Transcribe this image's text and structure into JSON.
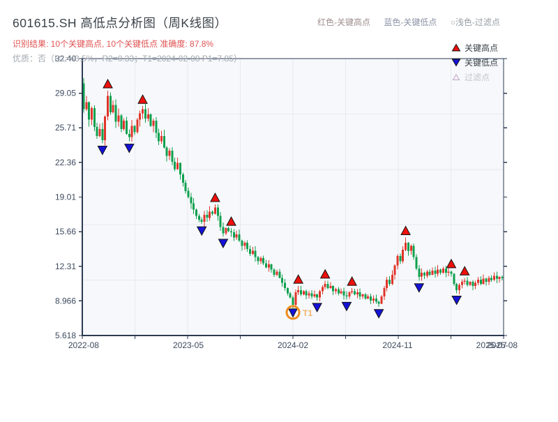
{
  "header": {
    "title": "601615.SH 高低点分析图（周K线图）",
    "result_line": "识别结果: 10个关键高点, 10个关键低点  准确度: 87.8%",
    "quality_line": "优质：否（R1=43.5%，R2=0.33；T1=2024-02-08 P1=7.85）"
  },
  "top_legend": {
    "high_note": "红色-关键高点",
    "low_note": "蓝色-关键低点",
    "filtered_note": "○浅色-过滤点"
  },
  "chart_legend": [
    {
      "id": "key-high",
      "label": "关键高点",
      "icon": "red-up-triangle",
      "disabled": false
    },
    {
      "id": "key-low",
      "label": "关键低点",
      "icon": "blue-down-triangle",
      "disabled": false
    },
    {
      "id": "filtered",
      "label": "过滤点",
      "icon": "light-hollow-triangle",
      "disabled": true
    }
  ],
  "chart_data": {
    "type": "candlestick",
    "period": "weekly",
    "symbol": "601615.SH",
    "title": "601615.SH 高低点分析图（周K线图）",
    "ylim": [
      5.618,
      32.4
    ],
    "y_ticks": [
      "5.618",
      "8.966",
      "12.31",
      "15.66",
      "19.01",
      "22.36",
      "25.71",
      "29.05",
      "32.40"
    ],
    "x_ticks": [
      {
        "label": "2022-08",
        "week": 0
      },
      {
        "label": "2023-05",
        "week": 39
      },
      {
        "label": "2024-02",
        "week": 78
      },
      {
        "label": "2024-11",
        "week": 117
      },
      {
        "label": "2025-07",
        "week": 152
      },
      {
        "label": "2025-08",
        "week": 156
      }
    ],
    "weeks_total": 157,
    "first_open": 30.0,
    "closes": [
      27.5,
      28.2,
      26.5,
      27.6,
      25.8,
      24.9,
      25.6,
      24.5,
      26.8,
      28.8,
      27.2,
      27.9,
      26.3,
      26.9,
      25.6,
      26.4,
      25.1,
      24.8,
      25.9,
      25.3,
      26.5,
      27.1,
      27.5,
      26.6,
      27.0,
      25.9,
      26.4,
      25.2,
      24.4,
      24.9,
      23.8,
      23.0,
      23.5,
      22.4,
      21.7,
      22.3,
      21.2,
      20.4,
      19.6,
      19.0,
      18.4,
      17.8,
      17.2,
      16.8,
      16.6,
      17.3,
      17.0,
      17.6,
      17.4,
      18.0,
      17.2,
      16.1,
      15.5,
      16.0,
      15.7,
      15.6,
      15.1,
      15.4,
      14.8,
      14.3,
      14.6,
      14.0,
      13.5,
      13.8,
      13.2,
      12.8,
      13.1,
      12.6,
      12.2,
      12.5,
      12.0,
      11.5,
      11.8,
      11.2,
      10.7,
      10.2,
      9.7,
      9.3,
      8.6,
      9.8,
      10.0,
      9.6,
      9.9,
      9.5,
      9.7,
      9.4,
      9.6,
      9.3,
      9.9,
      10.3,
      10.6,
      10.2,
      10.4,
      9.9,
      10.1,
      9.7,
      9.9,
      9.5,
      9.4,
      9.8,
      9.9,
      9.6,
      9.8,
      9.4,
      9.6,
      9.2,
      9.4,
      9.0,
      9.2,
      8.9,
      8.7,
      9.4,
      10.2,
      11.0,
      10.6,
      11.5,
      12.4,
      13.3,
      12.8,
      13.9,
      14.6,
      13.8,
      14.3,
      13.2,
      12.1,
      11.3,
      11.7,
      11.4,
      11.8,
      11.5,
      11.9,
      11.6,
      12.0,
      11.7,
      12.1,
      11.7,
      11.8,
      11.6,
      10.6,
      10.0,
      10.5,
      10.8,
      10.9,
      10.5,
      10.8,
      10.4,
      10.7,
      11.0,
      10.6,
      11.1,
      10.8,
      11.2,
      11.0,
      11.4,
      11.1,
      11.3,
      11.2
    ],
    "key_highs": [
      {
        "week": 9,
        "price": 29.3
      },
      {
        "week": 22,
        "price": 27.8
      },
      {
        "week": 49,
        "price": 18.3
      },
      {
        "week": 55,
        "price": 16.0
      },
      {
        "week": 80,
        "price": 10.4
      },
      {
        "week": 90,
        "price": 10.9
      },
      {
        "week": 100,
        "price": 10.2
      },
      {
        "week": 120,
        "price": 15.1
      },
      {
        "week": 137,
        "price": 11.9
      },
      {
        "week": 142,
        "price": 11.2
      }
    ],
    "key_lows": [
      {
        "week": 7,
        "price": 24.2
      },
      {
        "week": 17,
        "price": 24.4
      },
      {
        "week": 44,
        "price": 16.4
      },
      {
        "week": 52,
        "price": 15.2
      },
      {
        "week": 78,
        "price": 7.85
      },
      {
        "week": 87,
        "price": 9.0
      },
      {
        "week": 98,
        "price": 9.1
      },
      {
        "week": 110,
        "price": 8.4
      },
      {
        "week": 125,
        "price": 10.9
      },
      {
        "week": 139,
        "price": 9.7
      }
    ],
    "t1": {
      "week": 78,
      "price": 7.85,
      "label": "T1",
      "date": "2024-02-08"
    },
    "colors": {
      "up": "#e0352b",
      "down": "#0fa04e",
      "key_high": "#ee100c",
      "key_low": "#1512d8",
      "t1_ring": "#f08c1e",
      "t1_text": "#f2b26a",
      "axis": "#2b3a52",
      "grid": "#e5e9f0",
      "plot_bg": "#f6f8fb"
    },
    "legend_position": "top-right-inside",
    "grid": true
  }
}
